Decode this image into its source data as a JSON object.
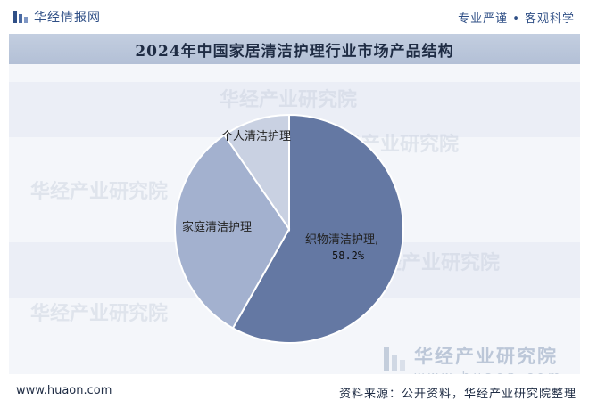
{
  "header": {
    "brand": "华经情报网",
    "slogan": "专业严谨 • 客观科学"
  },
  "chart_data": {
    "type": "pie",
    "title": "2024年中国家居清洁护理行业市场产品结构",
    "slices": [
      {
        "label": "织物清洁护理,",
        "value": 58.2,
        "value_label": "58.2%",
        "color": "#6478a3"
      },
      {
        "label": "家庭清洁护理",
        "value": 32.2,
        "value_label": "",
        "color": "#a3b1cf"
      },
      {
        "label": "个人清洁护理",
        "value": 9.6,
        "value_label": "",
        "color": "#c9d1e2"
      }
    ],
    "start_angle_deg": 0,
    "direction": "clockwise",
    "legend": "none"
  },
  "watermarks": [
    "华经产业研究院",
    "华经产业研究院",
    "华经产业研究院",
    "华经产业研究院",
    "华经产业研究院"
  ],
  "logo_watermark": {
    "name": "华经产业研究院",
    "url": "www.huaon.com"
  },
  "footer": {
    "url": "www.huaon.com",
    "source": "资料来源：公开资料，华经产业研究院整理"
  },
  "colors": {
    "brand": "#2f4f86",
    "banner": "#b9c5da",
    "chart_bg": "#f4f6fa"
  }
}
